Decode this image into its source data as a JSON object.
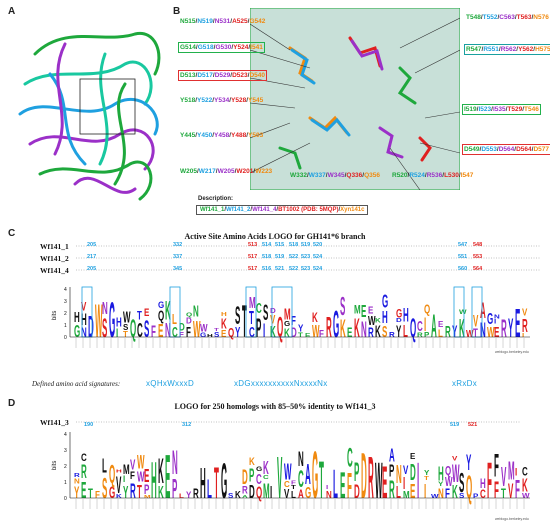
{
  "panels": {
    "a": "A",
    "b": "B",
    "c": "C",
    "d": "D"
  },
  "panel_b": {
    "residues": [
      {
        "parts": [
          [
            "N515",
            "green"
          ],
          [
            "/",
            "g"
          ],
          [
            "N519",
            "cyan"
          ],
          [
            "/",
            "g"
          ],
          [
            "N531",
            "purple"
          ],
          [
            "/",
            "g"
          ],
          [
            "A525",
            "red"
          ],
          [
            "/",
            "g"
          ],
          [
            "G542",
            "orange"
          ]
        ],
        "box": "none"
      },
      {
        "parts": [
          [
            "G514",
            "green"
          ],
          [
            "/",
            "g"
          ],
          [
            "G518",
            "cyan"
          ],
          [
            "/",
            "g"
          ],
          [
            "G530",
            "purple"
          ],
          [
            "/",
            "g"
          ],
          [
            "Y524",
            "red"
          ],
          [
            "/",
            "g"
          ],
          [
            "I541",
            "orange"
          ]
        ],
        "box": "green"
      },
      {
        "parts": [
          [
            "D513",
            "green"
          ],
          [
            "/",
            "g"
          ],
          [
            "D517",
            "cyan"
          ],
          [
            "/",
            "g"
          ],
          [
            "D529",
            "purple"
          ],
          [
            "/",
            "g"
          ],
          [
            "D523",
            "red"
          ],
          [
            "/",
            "g"
          ],
          [
            "D540",
            "orange"
          ]
        ],
        "box": "red"
      },
      {
        "parts": [
          [
            "Y518",
            "green"
          ],
          [
            "/",
            "g"
          ],
          [
            "Y522",
            "cyan"
          ],
          [
            "/",
            "g"
          ],
          [
            "Y534",
            "purple"
          ],
          [
            "/",
            "g"
          ],
          [
            "Y528",
            "red"
          ],
          [
            "/",
            "g"
          ],
          [
            "Y545",
            "orange"
          ]
        ],
        "box": "none"
      },
      {
        "parts": [
          [
            "Y445",
            "green"
          ],
          [
            "/",
            "g"
          ],
          [
            "Y450",
            "cyan"
          ],
          [
            "/",
            "g"
          ],
          [
            "Y458",
            "purple"
          ],
          [
            "/",
            "g"
          ],
          [
            "Y488",
            "red"
          ],
          [
            "/",
            "g"
          ],
          [
            "Y503",
            "orange"
          ]
        ],
        "box": "none"
      },
      {
        "parts": [
          [
            "W205",
            "green"
          ],
          [
            "/",
            "g"
          ],
          [
            "W217",
            "cyan"
          ],
          [
            "/",
            "g"
          ],
          [
            "W205",
            "purple"
          ],
          [
            "/",
            "g"
          ],
          [
            "W201",
            "red"
          ],
          [
            "/",
            "g"
          ],
          [
            "W223",
            "orange"
          ]
        ],
        "box": "none"
      },
      {
        "parts": [
          [
            "T548",
            "green"
          ],
          [
            "/",
            "g"
          ],
          [
            "T552",
            "cyan"
          ],
          [
            "/",
            "g"
          ],
          [
            "C563",
            "purple"
          ],
          [
            "/",
            "g"
          ],
          [
            "T563",
            "red"
          ],
          [
            "/",
            "g"
          ],
          [
            "N576",
            "orange"
          ]
        ],
        "box": "none"
      },
      {
        "parts": [
          [
            "R547",
            "green"
          ],
          [
            "/",
            "g"
          ],
          [
            "R551",
            "cyan"
          ],
          [
            "/",
            "g"
          ],
          [
            "R562",
            "purple"
          ],
          [
            "/",
            "g"
          ],
          [
            "Y562",
            "red"
          ],
          [
            "/",
            "g"
          ],
          [
            "H575",
            "orange"
          ]
        ],
        "box": "cyan"
      },
      {
        "parts": [
          [
            "I519",
            "green"
          ],
          [
            "/",
            "g"
          ],
          [
            "I523",
            "cyan"
          ],
          [
            "/",
            "g"
          ],
          [
            "I535",
            "purple"
          ],
          [
            "/",
            "g"
          ],
          [
            "T529",
            "red"
          ],
          [
            "/",
            "g"
          ],
          [
            "T546",
            "orange"
          ]
        ],
        "box": "green"
      },
      {
        "parts": [
          [
            "D549",
            "green"
          ],
          [
            "/",
            "g"
          ],
          [
            "D553",
            "cyan"
          ],
          [
            "/",
            "g"
          ],
          [
            "D564",
            "purple"
          ],
          [
            "/",
            "g"
          ],
          [
            "D564",
            "red"
          ],
          [
            "/",
            "g"
          ],
          [
            "D577",
            "orange"
          ]
        ],
        "box": "red"
      },
      {
        "parts": [
          [
            "W332",
            "green"
          ],
          [
            "/",
            "g"
          ],
          [
            "W337",
            "cyan"
          ],
          [
            "/",
            "g"
          ],
          [
            "W345",
            "purple"
          ],
          [
            "/",
            "g"
          ],
          [
            "Q336",
            "red"
          ],
          [
            "/",
            "g"
          ],
          [
            "Q356",
            "orange"
          ]
        ],
        "box": "none"
      },
      {
        "parts": [
          [
            "R520",
            "green"
          ],
          [
            "/",
            "g"
          ],
          [
            "R524",
            "cyan"
          ],
          [
            "/",
            "g"
          ],
          [
            "R536",
            "purple"
          ],
          [
            "/",
            "g"
          ],
          [
            "L530",
            "red"
          ],
          [
            "/",
            "g"
          ],
          [
            "I547",
            "orange"
          ]
        ],
        "box": "none"
      }
    ],
    "description_title": "Description:",
    "description_items": [
      {
        "text": "Wf141_1",
        "color": "green"
      },
      {
        "text": "/",
        "color": "g"
      },
      {
        "text": "Wf141_2",
        "color": "cyan"
      },
      {
        "text": "/",
        "color": "g"
      },
      {
        "text": "Wf141_4",
        "color": "purple"
      },
      {
        "text": "/",
        "color": "g"
      },
      {
        "text": "BT1002 (PDB: 5MQP)",
        "color": "red"
      },
      {
        "text": "/",
        "color": "g"
      },
      {
        "text": "Xyn141c",
        "color": "orange"
      }
    ]
  },
  "panel_c": {
    "title": "Active Site Amino Acids LOGO for GH141*6 branch",
    "rows": [
      {
        "label": "Wf141_1",
        "positions": [
          "205",
          "332",
          "513",
          "514",
          "515",
          "518",
          "519",
          "520",
          "547",
          "548"
        ]
      },
      {
        "label": "Wf141_2",
        "positions": [
          "217",
          "337",
          "517",
          "518",
          "519",
          "522",
          "523",
          "524",
          "551",
          "553"
        ]
      },
      {
        "label": "Wf141_4",
        "positions": [
          "205",
          "345",
          "517",
          "516",
          "521",
          "522",
          "523",
          "524",
          "560",
          "564"
        ]
      }
    ],
    "ylabel": "bits",
    "signatures_label": "Defined amino acid signatures:",
    "signatures": [
      "xQHxWxxxD",
      "xDGxxxxxxxxxxNxxxxNx",
      "xRxDx"
    ],
    "credit": "weblogo.berkeley.edu"
  },
  "panel_d": {
    "title": "LOGO for 250 homologs with 85–50% identity to Wf141_3",
    "row_label": "Wf141_3",
    "positions": [
      "190",
      "312",
      "519",
      "521"
    ],
    "ylabel": "bits",
    "credit": "weblogo.berkeley.edu"
  },
  "colors": {
    "green": "#1ea83c",
    "cyan": "#1fa0e0",
    "purple": "#9b30c8",
    "red": "#e02020",
    "orange": "#f08a10"
  }
}
